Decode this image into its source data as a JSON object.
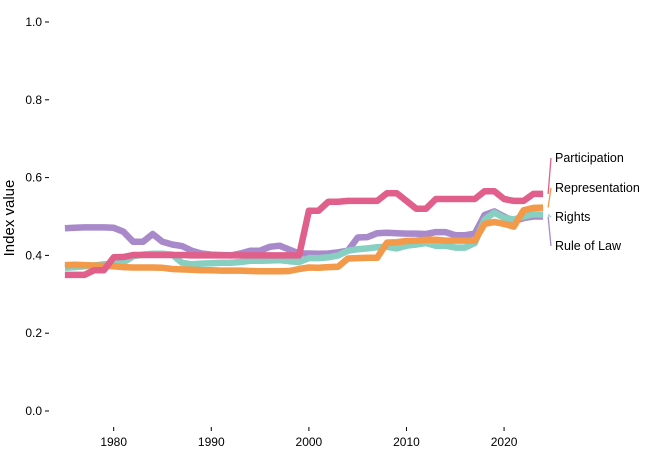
{
  "chart_data": {
    "type": "line",
    "title": "",
    "xlabel": "",
    "ylabel": "Index value",
    "xlim": [
      1974.5,
      2024.5
    ],
    "ylim": [
      0.0,
      1.0
    ],
    "x_ticks": [
      1980,
      1990,
      2000,
      2010,
      2020
    ],
    "y_ticks": [
      "0.0",
      "0.2",
      "0.4",
      "0.6",
      "0.8",
      "1.0"
    ],
    "grid": false,
    "legend": "direct labels at line ends (right)",
    "x": [
      1975,
      1976,
      1977,
      1978,
      1979,
      1980,
      1981,
      1982,
      1983,
      1984,
      1985,
      1986,
      1987,
      1988,
      1989,
      1990,
      1991,
      1992,
      1993,
      1994,
      1995,
      1996,
      1997,
      1998,
      1999,
      2000,
      2001,
      2002,
      2003,
      2004,
      2005,
      2006,
      2007,
      2008,
      2009,
      2010,
      2011,
      2012,
      2013,
      2014,
      2015,
      2016,
      2017,
      2018,
      2019,
      2020,
      2021,
      2022,
      2023,
      2024
    ],
    "series": [
      {
        "name": "Rule of Law",
        "color": "#a889c9",
        "values": [
          0.47,
          0.471,
          0.472,
          0.472,
          0.472,
          0.471,
          0.461,
          0.435,
          0.435,
          0.455,
          0.435,
          0.428,
          0.424,
          0.412,
          0.405,
          0.402,
          0.401,
          0.4,
          0.405,
          0.412,
          0.412,
          0.422,
          0.425,
          0.415,
          0.405,
          0.405,
          0.404,
          0.405,
          0.408,
          0.412,
          0.446,
          0.447,
          0.457,
          0.458,
          0.457,
          0.456,
          0.456,
          0.455,
          0.46,
          0.46,
          0.452,
          0.452,
          0.456,
          0.504,
          0.513,
          0.5,
          0.488,
          0.496,
          0.5,
          0.5
        ]
      },
      {
        "name": "Rights",
        "color": "#86cfc1",
        "values": [
          0.368,
          0.37,
          0.372,
          0.374,
          0.377,
          0.378,
          0.382,
          0.398,
          0.402,
          0.404,
          0.404,
          0.402,
          0.381,
          0.377,
          0.379,
          0.38,
          0.381,
          0.381,
          0.383,
          0.386,
          0.386,
          0.387,
          0.388,
          0.385,
          0.383,
          0.393,
          0.393,
          0.395,
          0.4,
          0.412,
          0.416,
          0.418,
          0.421,
          0.422,
          0.418,
          0.425,
          0.428,
          0.432,
          0.425,
          0.425,
          0.42,
          0.42,
          0.432,
          0.492,
          0.51,
          0.497,
          0.492,
          0.5,
          0.506,
          0.505
        ]
      },
      {
        "name": "Representation",
        "color": "#f2994a",
        "values": [
          0.375,
          0.376,
          0.375,
          0.374,
          0.373,
          0.372,
          0.37,
          0.369,
          0.369,
          0.369,
          0.368,
          0.365,
          0.364,
          0.363,
          0.362,
          0.362,
          0.361,
          0.361,
          0.361,
          0.36,
          0.359,
          0.359,
          0.359,
          0.36,
          0.365,
          0.369,
          0.368,
          0.37,
          0.371,
          0.392,
          0.393,
          0.394,
          0.394,
          0.433,
          0.434,
          0.437,
          0.438,
          0.44,
          0.44,
          0.438,
          0.438,
          0.438,
          0.438,
          0.481,
          0.486,
          0.481,
          0.474,
          0.516,
          0.522,
          0.523
        ]
      },
      {
        "name": "Participation",
        "color": "#e0608b",
        "values": [
          0.35,
          0.35,
          0.35,
          0.362,
          0.362,
          0.395,
          0.396,
          0.401,
          0.401,
          0.401,
          0.401,
          0.401,
          0.401,
          0.4,
          0.4,
          0.4,
          0.4,
          0.4,
          0.4,
          0.4,
          0.4,
          0.4,
          0.4,
          0.4,
          0.4,
          0.515,
          0.515,
          0.538,
          0.538,
          0.54,
          0.54,
          0.54,
          0.54,
          0.56,
          0.56,
          0.54,
          0.52,
          0.52,
          0.545,
          0.545,
          0.545,
          0.545,
          0.545,
          0.565,
          0.565,
          0.545,
          0.54,
          0.54,
          0.558,
          0.558
        ]
      }
    ],
    "series_labels": [
      {
        "name": "Participation",
        "color": "#e0608b"
      },
      {
        "name": "Representation",
        "color": "#f2994a"
      },
      {
        "name": "Rights",
        "color": "#86cfc1"
      },
      {
        "name": "Rule of Law",
        "color": "#a889c9"
      }
    ]
  }
}
